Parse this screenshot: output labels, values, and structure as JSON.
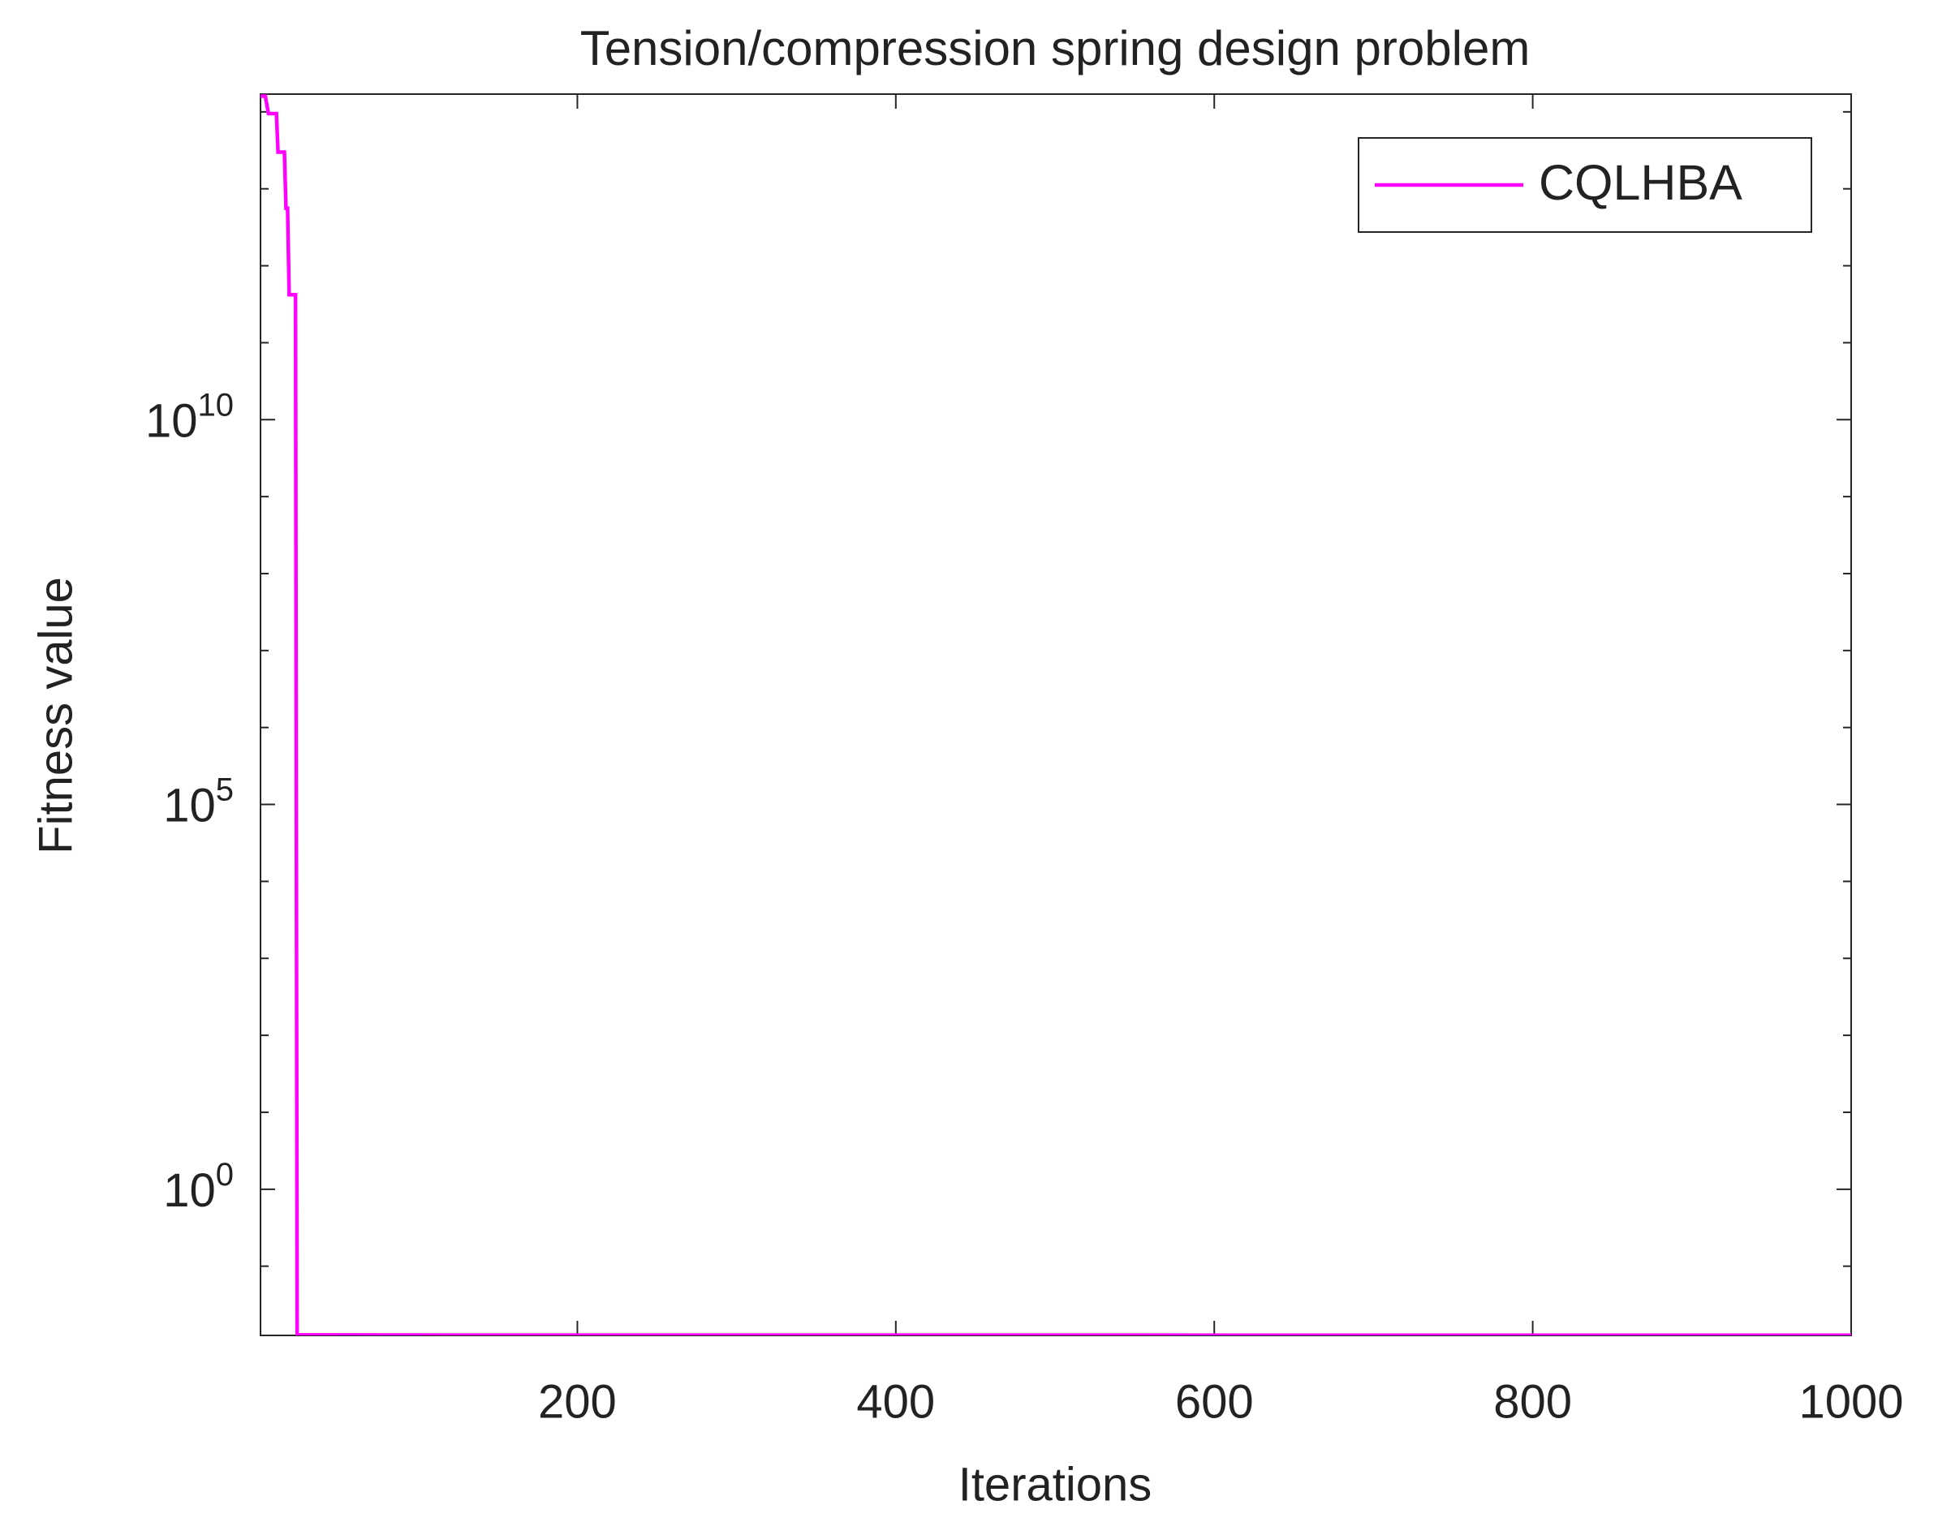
{
  "chart_data": {
    "type": "line",
    "title": "Tension/compression spring design problem",
    "xlabel": "Iterations",
    "ylabel": "Fitness value",
    "x": [
      1,
      4,
      6,
      11,
      12,
      16,
      17,
      18,
      19,
      23,
      24,
      130,
      1000
    ],
    "series": [
      {
        "name": "CQLHBA",
        "color": "#ff00ff",
        "values": [
          160000000000000,
          160000000000000,
          95000000000000,
          95000000000000,
          30000000000000,
          30000000000000,
          5600000000000,
          5600000000000,
          420000000000,
          420000000000,
          0.0128,
          0.01272,
          0.01267
        ]
      }
    ],
    "xlim": [
      1,
      1000
    ],
    "xticks": [
      200,
      400,
      600,
      800,
      1000
    ],
    "ylim": [
      0.0126,
      170000000000000
    ],
    "yscale": "log",
    "yticks": [
      {
        "value": 1,
        "label": "10^0"
      },
      {
        "value": 100000,
        "label": "10^5"
      },
      {
        "value": 10000000000,
        "label": "10^10"
      }
    ],
    "yminorticks": [
      0.1,
      10,
      100,
      1000,
      10000,
      1000000,
      10000000,
      100000000,
      1000000000,
      100000000000,
      1000000000000,
      10000000000000,
      100000000000000
    ],
    "grid": false,
    "legend": "upper right"
  }
}
